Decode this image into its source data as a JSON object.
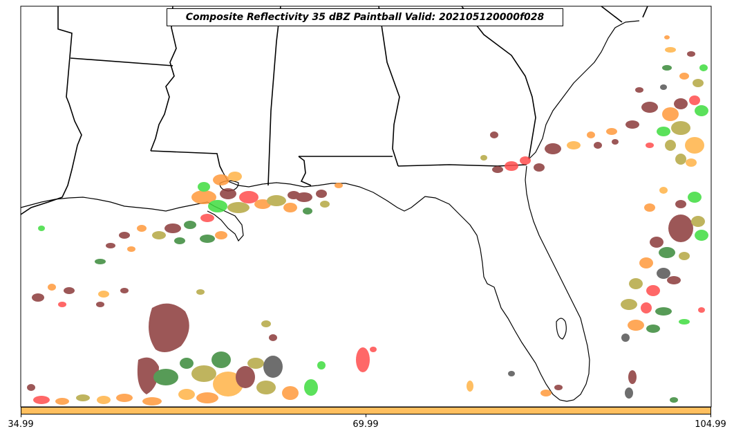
{
  "title": "Composite Reflectivity 35 dBZ Paintball Valid: 202105120000f028",
  "colorbar": {
    "color": "#ffbf5f",
    "tick_labels": [
      "34.99",
      "69.99",
      "104.99"
    ]
  },
  "colors": {
    "paintball": [
      "#8b3a3a",
      "#ff9a3c",
      "#ff4d4d",
      "#3fdc3f",
      "#3a8a3a",
      "#b5a842",
      "#555555",
      "#ffb347"
    ],
    "coastline": "#000000"
  }
}
